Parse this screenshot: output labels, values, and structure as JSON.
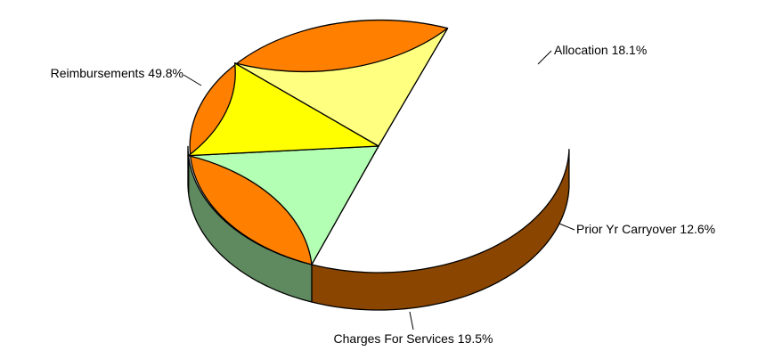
{
  "chart_data": {
    "type": "pie",
    "style": "3d",
    "title": "",
    "slices": [
      {
        "name": "Reimbursements",
        "value": 49.8,
        "label": "Reimbursements  49.8%",
        "color": "#ff8000",
        "side_color": "#8a4500"
      },
      {
        "name": "Allocation",
        "value": 18.1,
        "label": "Allocation  18.1%",
        "color": "#b3ffb3",
        "side_color": "#5f8a5f"
      },
      {
        "name": "Prior Yr Carryover",
        "value": 12.6,
        "label": "Prior Yr Carryover  12.6%",
        "color": "#ffff00",
        "side_color": "#808000"
      },
      {
        "name": "Charges For Services",
        "value": 19.5,
        "label": "Charges For Services  19.5%",
        "color": "#ffff80",
        "side_color": "#808040"
      }
    ]
  }
}
